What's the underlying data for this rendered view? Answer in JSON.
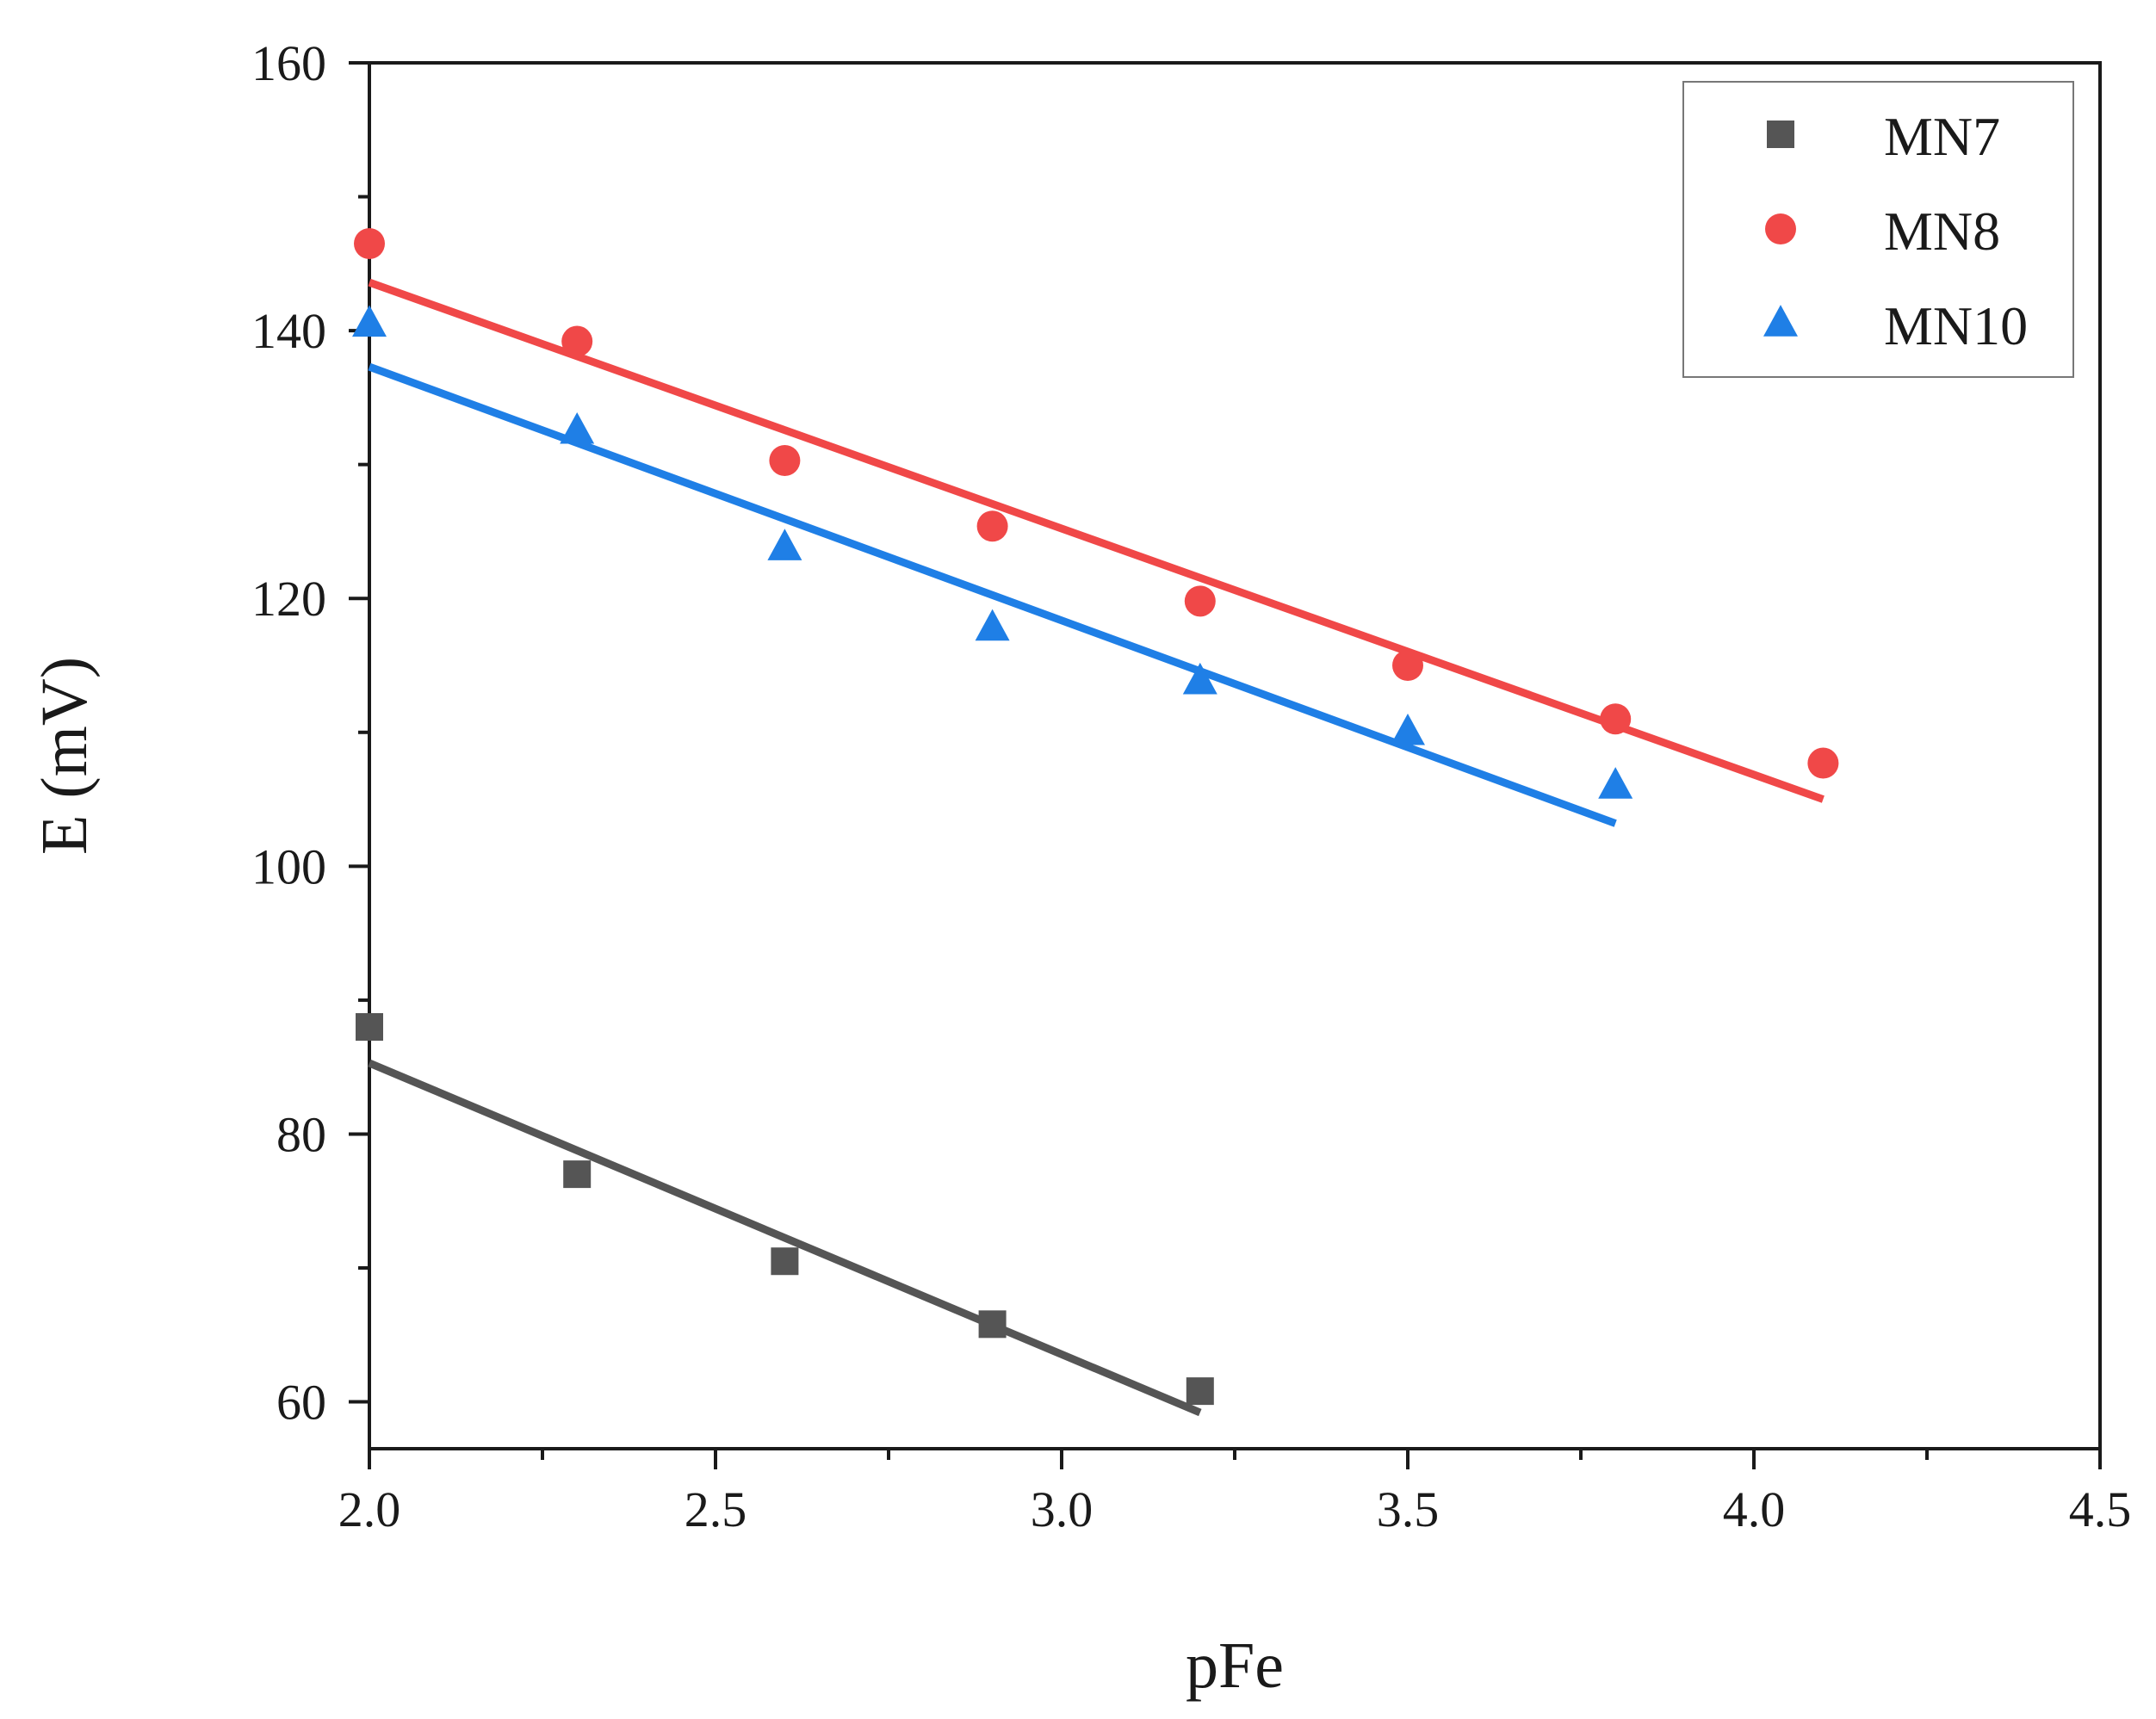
{
  "chart_data": {
    "type": "scatter",
    "xlabel": "pFe",
    "ylabel": "E (mV)",
    "xlim": [
      2.0,
      4.5
    ],
    "ylim": [
      56.5,
      160
    ],
    "xticks": [
      2.0,
      2.5,
      3.0,
      3.5,
      4.0,
      4.5
    ],
    "xtick_labels": [
      "2.0",
      "2.5",
      "3.0",
      "3.5",
      "4.0",
      "4.5"
    ],
    "yticks": [
      60,
      80,
      100,
      120,
      140,
      160
    ],
    "ytick_labels": [
      "60",
      "80",
      "100",
      "120",
      "140",
      "160"
    ],
    "legend_position": "top-right",
    "series": [
      {
        "name": "MN7",
        "marker": "square",
        "color": "#555555",
        "x": [
          2.0,
          2.3,
          2.6,
          2.9,
          3.2
        ],
        "y": [
          88.0,
          77.0,
          70.5,
          65.8,
          60.8
        ],
        "fit": {
          "x": [
            2.0,
            3.2
          ],
          "y": [
            85.3,
            59.2
          ]
        }
      },
      {
        "name": "MN8",
        "marker": "circle",
        "color": "#f04848",
        "x": [
          2.0,
          2.3,
          2.6,
          2.9,
          3.2,
          3.5,
          3.8,
          4.1
        ],
        "y": [
          146.5,
          139.2,
          130.3,
          125.4,
          119.8,
          115.0,
          111.0,
          107.7
        ],
        "fit": {
          "x": [
            2.0,
            4.1
          ],
          "y": [
            143.6,
            105.0
          ]
        }
      },
      {
        "name": "MN10",
        "marker": "triangle",
        "color": "#1f7fe6",
        "x": [
          2.0,
          2.3,
          2.6,
          2.9,
          3.2,
          3.5,
          3.8
        ],
        "y": [
          140.5,
          132.5,
          123.8,
          117.8,
          113.8,
          110.0,
          106.0
        ],
        "fit": {
          "x": [
            2.0,
            3.8
          ],
          "y": [
            137.3,
            103.2
          ]
        }
      }
    ]
  }
}
